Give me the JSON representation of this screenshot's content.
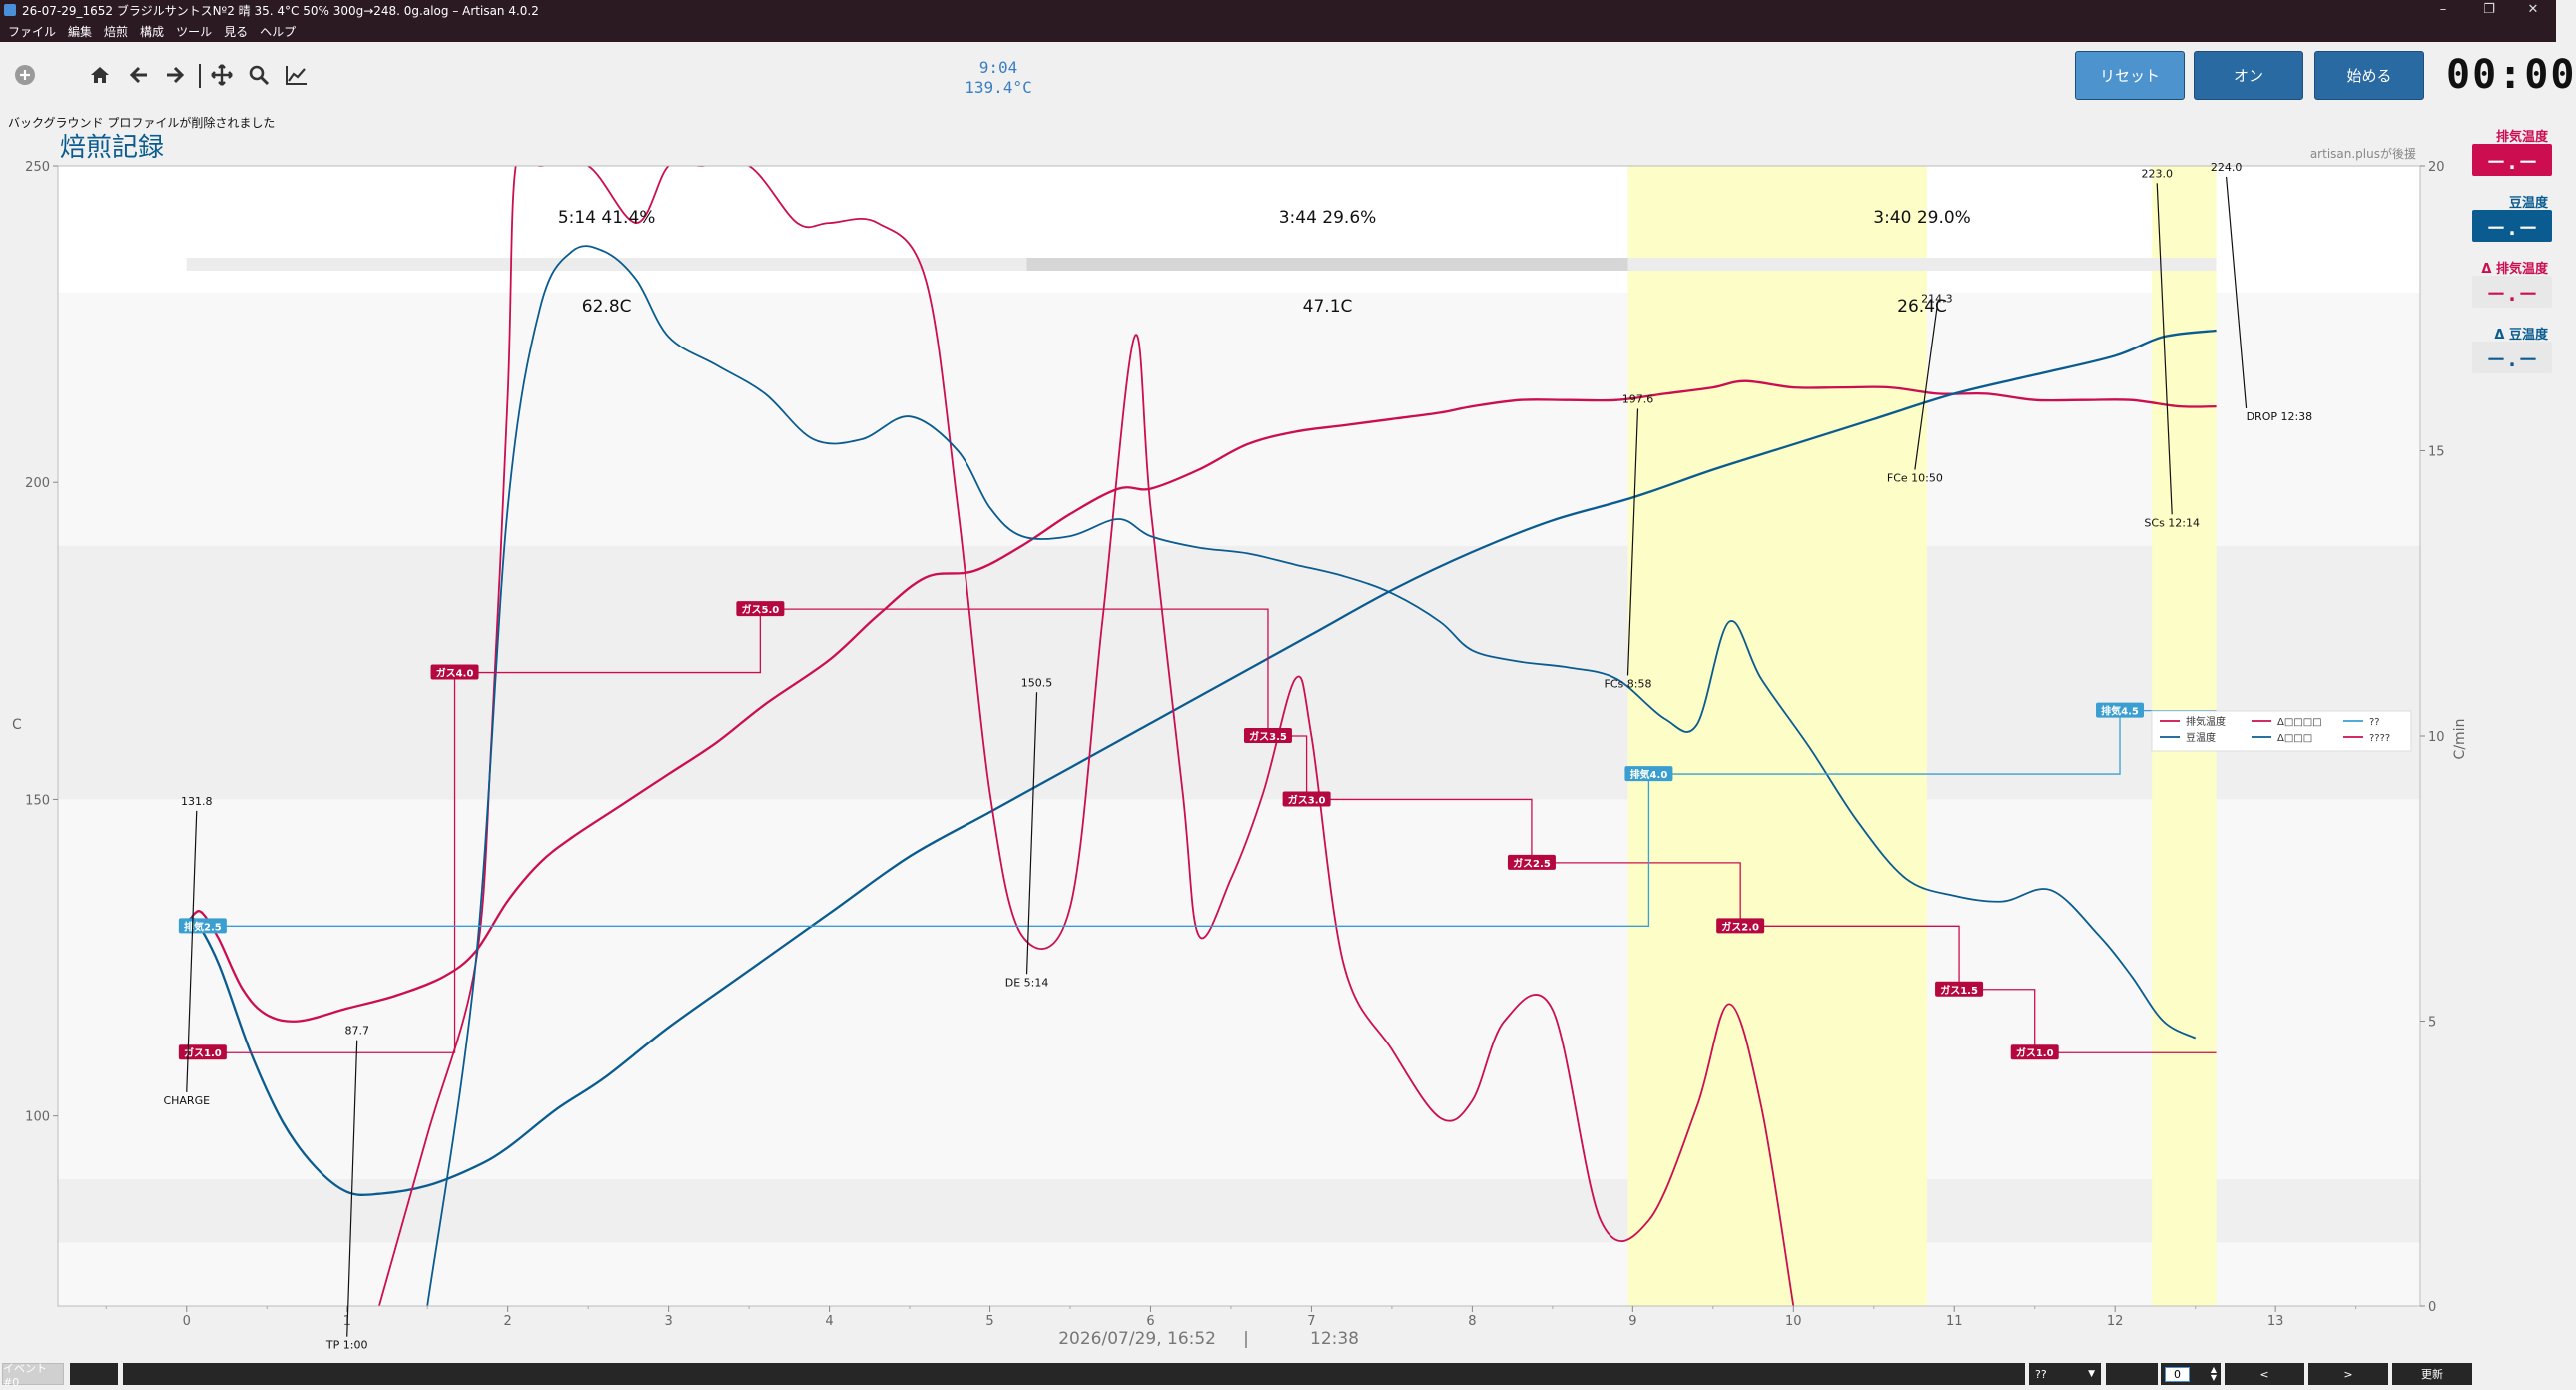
{
  "window": {
    "title": "26-07-29_1652  ブラジルサントスNº2  晴  35. 4°C  50%  300g→248. 0g.alog – Artisan 4.0.2",
    "minimize": "–",
    "maximize": "❐",
    "close": "✕"
  },
  "menu": [
    "ファイル",
    "編集",
    "焙煎",
    "構成",
    "ツール",
    "見る",
    "ヘルプ"
  ],
  "toolbar": {
    "icons": [
      "add-icon",
      "home-icon",
      "back-arrow-icon",
      "forward-arrow-icon",
      "pan-icon",
      "zoom-icon",
      "chart-icon"
    ],
    "lcd_time": "9:04",
    "lcd_temp": "139.4°C",
    "reset_label": "リセット",
    "on_label": "オン",
    "start_label": "始める",
    "clock": "00:00",
    "colors": {
      "reset": "#4d94cf",
      "on": "#2a6aa3",
      "start": "#2a6aa3"
    }
  },
  "message": "バックグラウンド プロファイルが削除されました",
  "right_panel": {
    "items": [
      {
        "label": "排気温度",
        "value": "－.－",
        "color": "#cc0e50",
        "style": "filled"
      },
      {
        "label": "豆温度",
        "value": "－.－",
        "color": "#0a5c90",
        "style": "filled"
      },
      {
        "label": "Δ 排気温度",
        "value": "－.－",
        "color": "#cc0e50",
        "style": "grey"
      },
      {
        "label": "Δ 豆温度",
        "value": "－.－",
        "color": "#0a5c90",
        "style": "grey"
      }
    ]
  },
  "chart_data": {
    "type": "line",
    "title": "焙煎記録",
    "watermark": "artisan.plusが後援",
    "ylabel": "C",
    "ylabel_right": "C/min",
    "ylim": [
      70,
      250
    ],
    "ylim_right": [
      0,
      20
    ],
    "xlim": [
      -0.8,
      13.9
    ],
    "x_ticks": [
      0,
      1,
      2,
      3,
      4,
      5,
      6,
      7,
      8,
      9,
      10,
      11,
      12,
      13
    ],
    "y_ticks": [
      100,
      150,
      200,
      250
    ],
    "y_ticks_right": [
      0,
      5,
      10,
      15,
      20
    ],
    "footer_left": "2026/07/29, 16:52",
    "footer_sep": "|",
    "footer_right": "12:38",
    "phases": [
      {
        "label": "5:14  41.4%",
        "sub": "62.8C",
        "start": 0,
        "end": 5.23
      },
      {
        "label": "3:44  29.6%",
        "sub": "47.1C",
        "start": 5.23,
        "end": 8.97
      },
      {
        "label": "3:40  29.0%",
        "sub": "26.4C",
        "start": 8.97,
        "end": 12.63
      }
    ],
    "highlight_bands": [
      [
        8.97,
        10.83
      ],
      [
        12.23,
        12.63
      ]
    ],
    "event_markers": [
      {
        "label": "CHARGE",
        "x": 0,
        "y": 131.8,
        "value": "131.8"
      },
      {
        "label": "TP 1:00",
        "x": 1.0,
        "y": 87.7,
        "value": "87.7"
      },
      {
        "label": "DE 5:14",
        "x": 5.23,
        "y": 150.5,
        "value": "150.5"
      },
      {
        "label": "FCs 8:58",
        "x": 8.97,
        "y": 197.6,
        "value": "197.6"
      },
      {
        "label": "FCe 10:50",
        "x": 10.83,
        "y": 214.3,
        "value": "214.3"
      },
      {
        "label": "SCs 12:14",
        "x": 12.23,
        "y": 223.0,
        "value": "223.0"
      },
      {
        "label": "DROP 12:38",
        "x": 12.63,
        "y": 224.0,
        "value": "224.0"
      }
    ],
    "gas_events": [
      {
        "label": "ガス1.0",
        "x": 0.1,
        "y": 110
      },
      {
        "label": "ガス4.0",
        "x": 1.67,
        "y": 170
      },
      {
        "label": "ガス5.0",
        "x": 3.57,
        "y": 180
      },
      {
        "label": "ガス3.5",
        "x": 6.73,
        "y": 160
      },
      {
        "label": "ガス3.0",
        "x": 6.97,
        "y": 150
      },
      {
        "label": "ガス2.5",
        "x": 8.37,
        "y": 140
      },
      {
        "label": "ガス2.0",
        "x": 9.67,
        "y": 130
      },
      {
        "label": "ガス1.5",
        "x": 11.03,
        "y": 120
      },
      {
        "label": "ガス1.0",
        "x": 11.5,
        "y": 110
      }
    ],
    "fan_events": [
      {
        "label": "排気2.5",
        "x": 0.1,
        "y": 130
      },
      {
        "label": "排気4.0",
        "x": 9.1,
        "y": 154
      },
      {
        "label": "排気4.5",
        "x": 12.03,
        "y": 164
      }
    ],
    "legend": {
      "position": "center-right",
      "entries": [
        "排気温度",
        "豆温度",
        "Δ□□□□",
        "Δ□□□",
        "??",
        "????"
      ]
    },
    "series": [
      {
        "name": "排気温度",
        "axis": "left",
        "color": "#cc0e50",
        "x": [
          0,
          0.05,
          0.1,
          0.2,
          0.35,
          0.5,
          0.7,
          1.0,
          1.3,
          1.6,
          1.8,
          2.0,
          2.2,
          2.4,
          2.7,
          3.0,
          3.3,
          3.6,
          4.0,
          4.3,
          4.6,
          4.9,
          5.2,
          5.5,
          5.8,
          6.0,
          6.3,
          6.6,
          6.9,
          7.2,
          7.5,
          7.8,
          8.0,
          8.3,
          8.6,
          8.9,
          9.2,
          9.5,
          9.7,
          10.0,
          10.3,
          10.6,
          10.9,
          11.2,
          11.5,
          11.8,
          12.1,
          12.4,
          12.63
        ],
        "y": [
          130,
          132,
          132,
          128,
          120,
          116,
          115,
          117,
          119,
          122,
          126,
          134,
          140,
          144,
          149,
          154,
          159,
          165,
          172,
          179,
          185,
          186,
          190,
          195,
          199,
          199,
          202,
          206,
          208,
          209,
          210,
          211,
          212,
          213,
          213,
          213,
          214,
          215,
          216,
          215,
          215,
          215,
          214,
          214,
          213,
          213,
          213,
          212,
          212
        ]
      },
      {
        "name": "豆温度",
        "axis": "left",
        "color": "#0a5c90",
        "x": [
          0,
          0.05,
          0.2,
          0.4,
          0.6,
          0.8,
          1.0,
          1.2,
          1.5,
          1.8,
          2.0,
          2.3,
          2.6,
          3.0,
          3.5,
          4.0,
          4.5,
          5.0,
          5.5,
          6.0,
          6.5,
          7.0,
          7.5,
          8.0,
          8.5,
          9.0,
          9.5,
          10.0,
          10.5,
          11.0,
          11.5,
          12.0,
          12.3,
          12.63
        ],
        "y": [
          130,
          131,
          124,
          110,
          99,
          92,
          88,
          87.7,
          89,
          92,
          95,
          101,
          106,
          114,
          123,
          132,
          141,
          148,
          155,
          162,
          169,
          176,
          183,
          189,
          194,
          197.6,
          202,
          206,
          210,
          214,
          217,
          220,
          223,
          224
        ]
      },
      {
        "name": "Δ□□□□",
        "axis": "right",
        "color": "#cc0e50",
        "x": [
          1.2,
          1.5,
          1.8,
          1.9,
          2.0,
          2.05,
          2.2,
          2.5,
          2.8,
          3.0,
          3.2,
          3.5,
          3.8,
          4.0,
          4.3,
          4.6,
          4.8,
          5.0,
          5.2,
          5.5,
          5.7,
          5.9,
          6.0,
          6.2,
          6.3,
          6.5,
          6.7,
          6.9,
          7.0,
          7.2,
          7.5,
          7.8,
          8.0,
          8.2,
          8.5,
          8.8,
          9.1,
          9.4,
          9.6,
          9.8,
          10.0
        ],
        "y": [
          0,
          3,
          6,
          10,
          16,
          20,
          20,
          20,
          19,
          20,
          20,
          20,
          19,
          19,
          19,
          18,
          14,
          9,
          6.5,
          7,
          12,
          17,
          14,
          9,
          6.5,
          7.5,
          9,
          11,
          10,
          6,
          4.5,
          3.3,
          3.6,
          5,
          5.2,
          1.5,
          1.5,
          3.5,
          5.3,
          3.5,
          0
        ]
      },
      {
        "name": "Δ□□□",
        "axis": "right",
        "color": "#0a5c90",
        "x": [
          1.5,
          1.8,
          2.0,
          2.2,
          2.4,
          2.6,
          2.8,
          3.0,
          3.3,
          3.6,
          3.9,
          4.2,
          4.5,
          4.8,
          5.0,
          5.2,
          5.5,
          5.8,
          6.0,
          6.3,
          6.6,
          6.9,
          7.2,
          7.5,
          7.8,
          8.0,
          8.3,
          8.6,
          8.9,
          9.2,
          9.4,
          9.6,
          9.8,
          10.1,
          10.4,
          10.7,
          11.0,
          11.3,
          11.6,
          11.9,
          12.1,
          12.3,
          12.5
        ],
        "y": [
          0,
          6,
          14,
          17.5,
          18.5,
          18.5,
          18,
          17,
          16.5,
          16,
          15.2,
          15.2,
          15.6,
          15,
          14,
          13.5,
          13.5,
          13.8,
          13.5,
          13.3,
          13.2,
          13,
          12.8,
          12.5,
          12,
          11.5,
          11.3,
          11.2,
          11,
          10.3,
          10.2,
          12,
          11,
          9.8,
          8.5,
          7.5,
          7.2,
          7.1,
          7.3,
          6.5,
          5.8,
          5,
          4.7
        ]
      }
    ]
  },
  "bottom": {
    "event_label": "イベント #0",
    "combo_value": "??",
    "spin_value": "0",
    "prev": "<",
    "next": ">",
    "update": "更新"
  }
}
